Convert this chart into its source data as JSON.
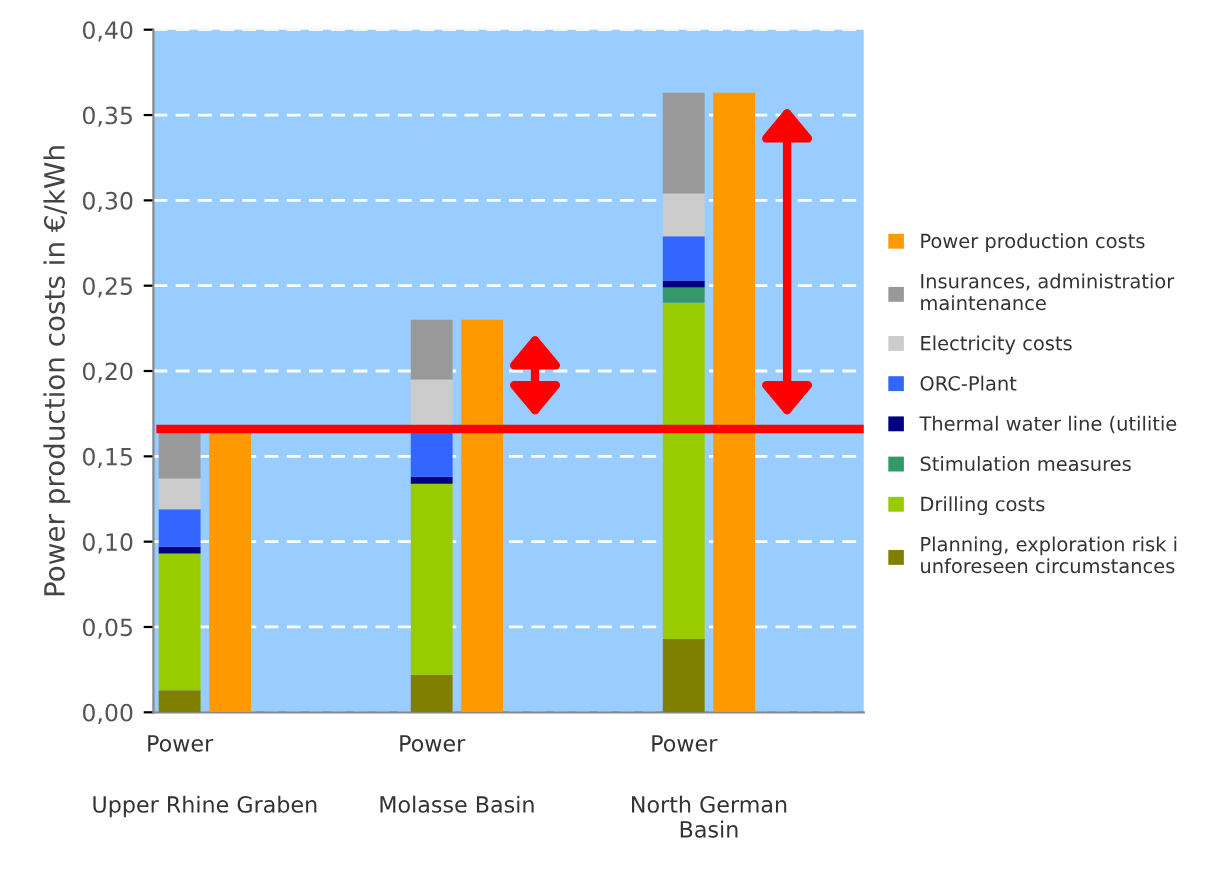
{
  "chart_data": {
    "type": "bar",
    "stacked": true,
    "ylabel": "Power production costs in €/kWh",
    "categories": [
      "Power",
      null,
      null,
      null,
      null,
      "Power",
      null,
      null,
      null,
      null,
      "Power",
      null
    ],
    "series": [
      {
        "name": "Planning, exploration risk i\nunforeseen circumstances",
        "color": "#808000",
        "values": [
          0.013,
          null,
          null,
          null,
          null,
          0.022,
          null,
          null,
          null,
          null,
          0.043,
          null
        ]
      },
      {
        "name": "Drilling costs",
        "color": "#99cc00",
        "values": [
          0.08,
          null,
          null,
          null,
          null,
          0.112,
          null,
          null,
          null,
          null,
          0.197,
          null
        ]
      },
      {
        "name": "Stimulation measures",
        "color": "#339966",
        "values": [
          0,
          null,
          null,
          null,
          null,
          0,
          null,
          null,
          null,
          null,
          0.009,
          null
        ]
      },
      {
        "name": "Thermal water line (utilitie",
        "color": "#000080",
        "values": [
          0.004,
          null,
          null,
          null,
          null,
          0.004,
          null,
          null,
          null,
          null,
          0.004,
          null
        ]
      },
      {
        "name": "ORC-Plant",
        "color": "#3366ff",
        "values": [
          0.022,
          null,
          null,
          null,
          null,
          0.027,
          null,
          null,
          null,
          null,
          0.026,
          null
        ]
      },
      {
        "name": "Electricity costs",
        "color": "#cccccc",
        "values": [
          0.018,
          null,
          null,
          null,
          null,
          0.03,
          null,
          null,
          null,
          null,
          0.025,
          null
        ]
      },
      {
        "name": "Insurances, administratior\nmaintenance",
        "color": "#999999",
        "values": [
          0.027,
          null,
          null,
          null,
          null,
          0.035,
          null,
          null,
          null,
          null,
          0.059,
          null
        ]
      },
      {
        "name": "Power production costs",
        "type": "bar",
        "color": "#ff9900",
        "values": [
          null,
          0.164,
          null,
          null,
          null,
          null,
          0.23,
          null,
          null,
          null,
          null,
          0.363
        ]
      }
    ],
    "ylim": [
      0,
      0.4
    ],
    "yticks": [
      {
        "value": 0,
        "label": "0,00"
      },
      {
        "value": 0.05,
        "label": "0,05"
      },
      {
        "value": 0.1,
        "label": "0,10"
      },
      {
        "value": 0.15,
        "label": "0,15"
      },
      {
        "value": 0.2,
        "label": "0,20"
      },
      {
        "value": 0.25,
        "label": "0,25"
      },
      {
        "value": 0.3,
        "label": "0,30"
      },
      {
        "value": 0.35,
        "label": "0,35"
      },
      {
        "value": 0.4,
        "label": "0,40"
      }
    ],
    "ref_lines": [
      {
        "axis": "y",
        "value": 0.166,
        "color": "#ff0000"
      }
    ],
    "annotations": [
      "Upper Rhine Graben",
      "Molasse Basin",
      "North German\nBasin"
    ],
    "grid": "y",
    "legend": "right"
  }
}
